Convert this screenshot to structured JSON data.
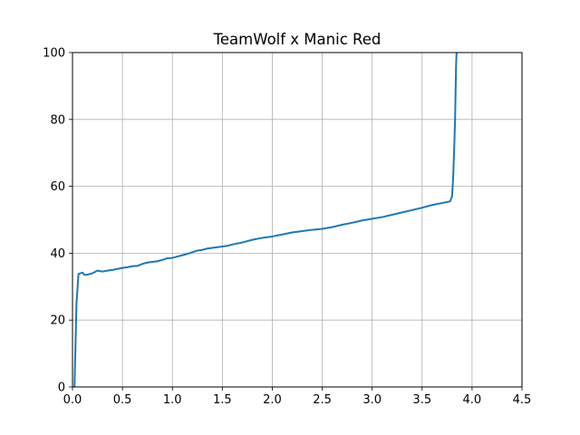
{
  "chart_data": {
    "type": "line",
    "title": "TeamWolf x Manic Red",
    "xlabel": "",
    "ylabel": "",
    "xlim": [
      0,
      4.5
    ],
    "ylim": [
      0,
      100
    ],
    "x_ticks": [
      0,
      0.5,
      1.0,
      1.5,
      2.0,
      2.5,
      3.0,
      3.5,
      4.0,
      4.5
    ],
    "x_tick_labels": [
      "0.0",
      "0.5",
      "1.0",
      "1.5",
      "2.0",
      "2.5",
      "3.0",
      "3.5",
      "4.0",
      "4.5"
    ],
    "y_ticks": [
      0,
      20,
      40,
      60,
      80,
      100
    ],
    "y_tick_labels": [
      "0",
      "20",
      "40",
      "60",
      "80",
      "100"
    ],
    "grid": true,
    "line_color": "#1f77b4",
    "series": [
      {
        "x": [
          0.02,
          0.04,
          0.06,
          0.08,
          0.1,
          0.12,
          0.15,
          0.2,
          0.25,
          0.3,
          0.35,
          0.4,
          0.45,
          0.5,
          0.55,
          0.6,
          0.65,
          0.7,
          0.75,
          0.8,
          0.85,
          0.9,
          0.95,
          1.0,
          1.05,
          1.1,
          1.15,
          1.2,
          1.25,
          1.3,
          1.35,
          1.4,
          1.45,
          1.5,
          1.55,
          1.6,
          1.65,
          1.7,
          1.8,
          1.9,
          2.0,
          2.1,
          2.2,
          2.3,
          2.4,
          2.5,
          2.6,
          2.7,
          2.8,
          2.9,
          3.0,
          3.1,
          3.2,
          3.3,
          3.4,
          3.5,
          3.6,
          3.7,
          3.78,
          3.8,
          3.81,
          3.82,
          3.83,
          3.835,
          3.84,
          3.845
        ],
        "y": [
          0,
          25,
          33.8,
          34.0,
          34.2,
          33.5,
          33.6,
          34.0,
          34.8,
          34.5,
          34.8,
          35.0,
          35.3,
          35.6,
          35.8,
          36.1,
          36.2,
          36.8,
          37.2,
          37.4,
          37.6,
          38.0,
          38.5,
          38.6,
          39.0,
          39.4,
          39.8,
          40.3,
          40.8,
          41.0,
          41.4,
          41.6,
          41.8,
          42.0,
          42.2,
          42.6,
          42.9,
          43.2,
          44.0,
          44.6,
          45.0,
          45.6,
          46.2,
          46.6,
          47.0,
          47.3,
          47.8,
          48.5,
          49.1,
          49.8,
          50.3,
          50.8,
          51.5,
          52.2,
          52.9,
          53.6,
          54.4,
          55.0,
          55.5,
          57,
          62,
          70,
          80,
          88,
          96,
          100
        ]
      }
    ]
  }
}
